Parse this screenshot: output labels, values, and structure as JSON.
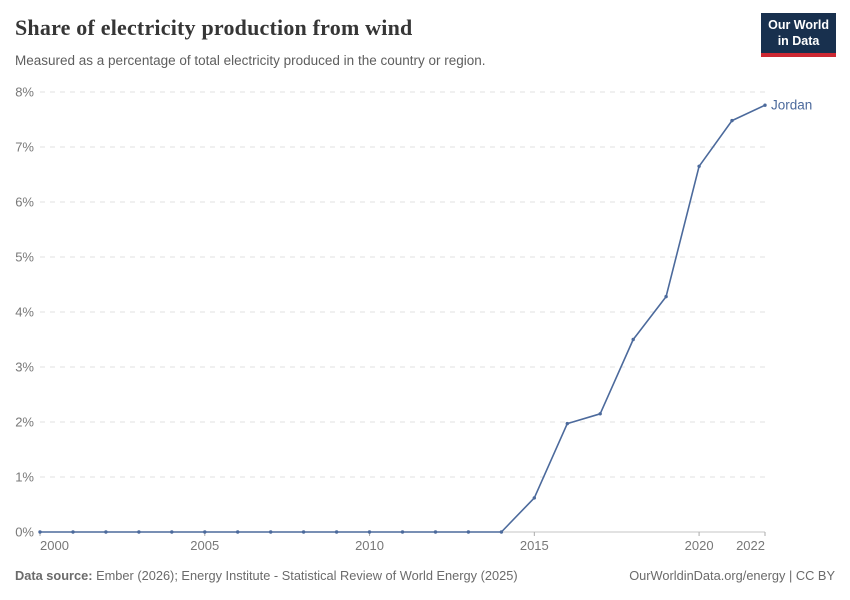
{
  "header": {
    "logo": {
      "line1": "Our World",
      "line2": "in Data"
    }
  },
  "chart_data": {
    "type": "line",
    "title": "Share of electricity production from wind",
    "subtitle": "Measured as a percentage of total electricity produced in the country or region.",
    "xlabel": "",
    "ylabel": "",
    "x_range": [
      2000,
      2022
    ],
    "ylim": [
      0,
      8
    ],
    "y_ticks": [
      0,
      1,
      2,
      3,
      4,
      5,
      6,
      7,
      8
    ],
    "y_tick_suffix": "%",
    "x_ticks": [
      2000,
      2005,
      2010,
      2015,
      2020,
      2022
    ],
    "grid": "horizontal-dashed",
    "legend_position": "end-of-line-label",
    "series": [
      {
        "name": "Jordan",
        "color": "#4c6a9c",
        "x": [
          2000,
          2001,
          2002,
          2003,
          2004,
          2005,
          2006,
          2007,
          2008,
          2009,
          2010,
          2011,
          2012,
          2013,
          2014,
          2015,
          2016,
          2017,
          2018,
          2019,
          2020,
          2021,
          2022
        ],
        "values": [
          0,
          0,
          0,
          0,
          0,
          0,
          0,
          0,
          0,
          0,
          0,
          0,
          0,
          0,
          0,
          0.62,
          1.97,
          2.15,
          3.5,
          4.28,
          6.65,
          7.48,
          7.76
        ]
      }
    ]
  },
  "footer": {
    "source_label": "Data source:",
    "source_text": " Ember (2026); Energy Institute - Statistical Review of World Energy (2025)",
    "credit": "OurWorldinData.org/energy | CC BY"
  },
  "colors": {
    "line": "#4c6a9c",
    "logo_navy": "#18304e",
    "logo_red": "#cd2832",
    "grid": "#e0e0e0",
    "axis_zero_line": "#c6c6c6",
    "tick_text": "#787878"
  }
}
